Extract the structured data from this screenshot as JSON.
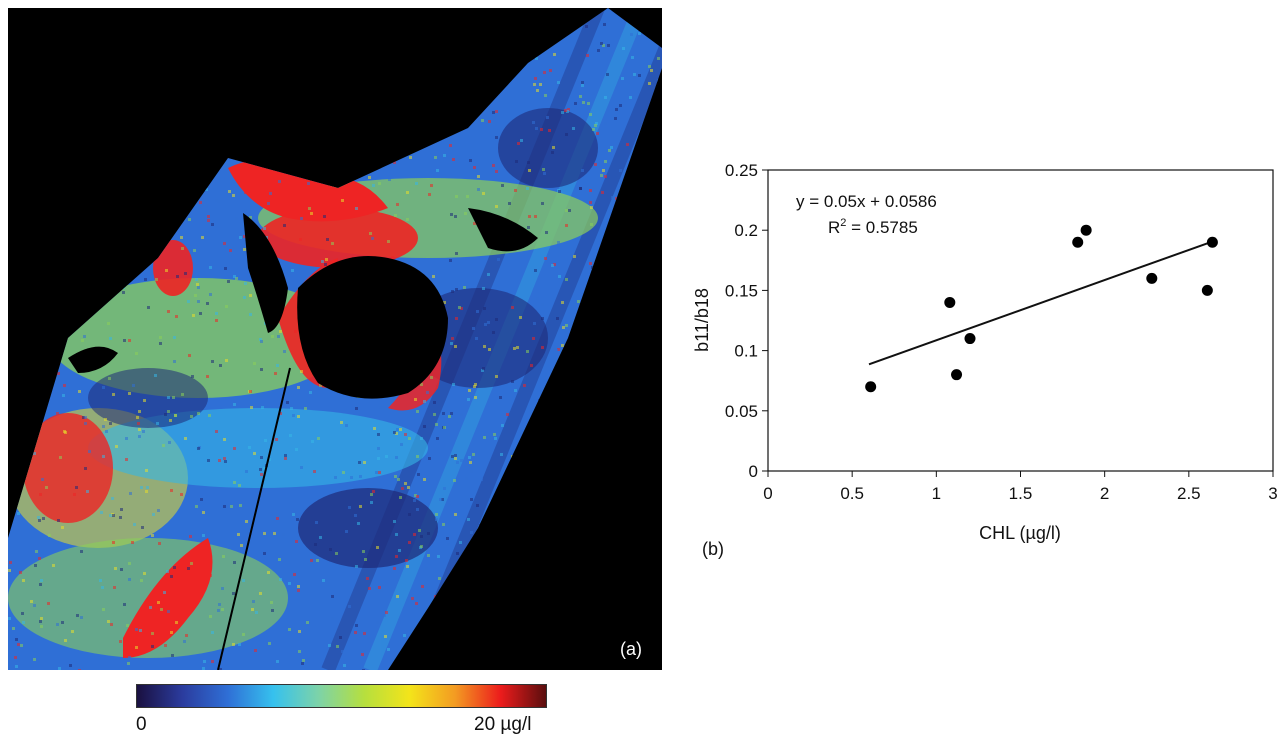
{
  "panel_a": {
    "label": "(a)",
    "colorbar": {
      "min_label": "0",
      "max_label": "20 µg/l",
      "stops": [
        "#1a1040",
        "#2b3c9e",
        "#2f6fd6",
        "#36c1ee",
        "#7dd3a8",
        "#b6df3e",
        "#f3e41a",
        "#f39b22",
        "#ec1c1c",
        "#5a0e0e"
      ]
    },
    "palette": {
      "background": "#000000",
      "dark_blue": "#1e2a78",
      "blue": "#2f6fd6",
      "cyan": "#36b6e6",
      "green": "#8bcf5a",
      "yellow": "#e7de2a",
      "red": "#ee2424"
    }
  },
  "panel_b": {
    "label": "(b)",
    "chart_data": {
      "type": "scatter",
      "xlabel": "CHL (µg/l)",
      "ylabel": "b11/b18",
      "xlim": [
        0,
        3
      ],
      "ylim": [
        0,
        0.25
      ],
      "x_ticks": [
        "0",
        "0.5",
        "1",
        "1.5",
        "2",
        "2.5",
        "3"
      ],
      "y_ticks": [
        "0",
        "0.05",
        "0.1",
        "0.15",
        "0.2",
        "0.25"
      ],
      "points": [
        {
          "x": 0.61,
          "y": 0.07
        },
        {
          "x": 1.08,
          "y": 0.14
        },
        {
          "x": 1.12,
          "y": 0.08
        },
        {
          "x": 1.2,
          "y": 0.11
        },
        {
          "x": 1.84,
          "y": 0.19
        },
        {
          "x": 1.89,
          "y": 0.2
        },
        {
          "x": 2.28,
          "y": 0.16
        },
        {
          "x": 2.61,
          "y": 0.15
        },
        {
          "x": 2.64,
          "y": 0.19
        }
      ],
      "trendline": {
        "slope": 0.05,
        "intercept": 0.0586,
        "x_from": 0.6,
        "x_to": 2.64
      },
      "equation": "y = 0.05x + 0.0586",
      "r2_prefix": "R",
      "r2_sup": "2",
      "r2_value": " = 0.5785",
      "grid": false
    }
  }
}
